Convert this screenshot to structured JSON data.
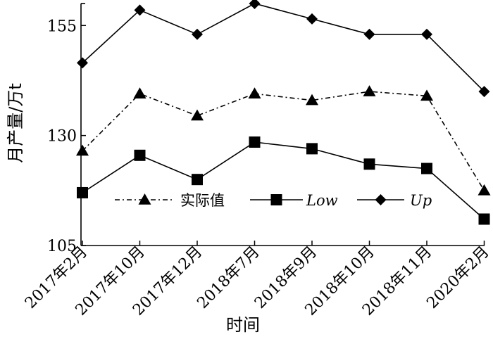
{
  "chart_data": {
    "type": "line",
    "xlabel": "时间",
    "ylabel": "月产量/万t",
    "categories": [
      "2017年2月",
      "2017年10月",
      "2017年12月",
      "2018年7月",
      "2018年9月",
      "2018年10月",
      "2018年11月",
      "2020年2月"
    ],
    "ylim": [
      105,
      160
    ],
    "yticks": [
      105,
      130,
      155
    ],
    "grid": false,
    "legend_position": "bottom-center",
    "series": [
      {
        "name": "实际值",
        "marker": "triangle",
        "line": "dash-dot",
        "color": "#000000",
        "values": [
          126.5,
          139.5,
          134.5,
          139.5,
          138,
          140,
          139,
          117.5
        ]
      },
      {
        "name": "Low",
        "marker": "square",
        "line": "solid",
        "color": "#000000",
        "values": [
          117,
          125.5,
          120,
          128.5,
          127,
          123.5,
          122.5,
          111
        ]
      },
      {
        "name": "Up",
        "marker": "diamond",
        "line": "solid",
        "color": "#000000",
        "values": [
          146.5,
          158.5,
          153,
          160,
          156.5,
          153,
          153,
          140
        ]
      }
    ]
  }
}
